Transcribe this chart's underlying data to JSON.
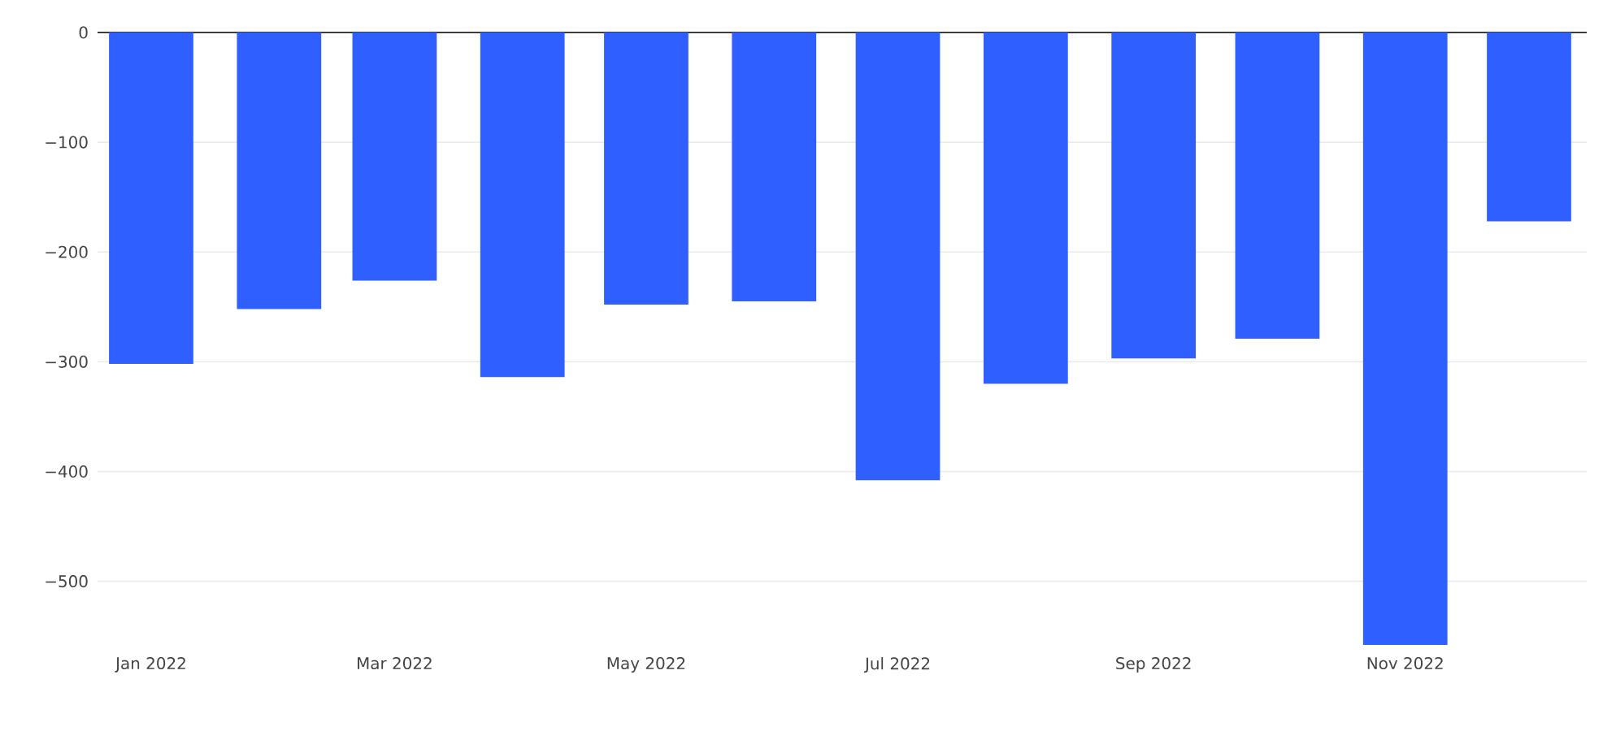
{
  "chart_data": {
    "type": "bar",
    "x": [
      "2022-01",
      "2022-02",
      "2022-03",
      "2022-04",
      "2022-05",
      "2022-06",
      "2022-07",
      "2022-08",
      "2022-09",
      "2022-10",
      "2022-11",
      "2022-12"
    ],
    "values": [
      -302,
      -252,
      -226,
      -314,
      -248,
      -245,
      -408,
      -320,
      -297,
      -279,
      -558,
      -172
    ],
    "color": "#2f5fff",
    "xlim": [
      "2021-12-19",
      "2022-12-15"
    ],
    "xticks": [
      {
        "value": "2022-01",
        "label": "Jan 2022"
      },
      {
        "value": "2022-03",
        "label": "Mar 2022"
      },
      {
        "value": "2022-05",
        "label": "May 2022"
      },
      {
        "value": "2022-07",
        "label": "Jul 2022"
      },
      {
        "value": "2022-09",
        "label": "Sep 2022"
      },
      {
        "value": "2022-11",
        "label": "Nov 2022"
      }
    ],
    "ylim": [
      -558,
      0
    ],
    "yticks": [
      0,
      {
        "value": -100,
        "label": "−100"
      },
      {
        "value": -200,
        "label": "−200"
      },
      {
        "value": -300,
        "label": "−300"
      },
      {
        "value": -400,
        "label": "−400"
      },
      {
        "value": -500,
        "label": "−500"
      }
    ],
    "grid": "y"
  }
}
